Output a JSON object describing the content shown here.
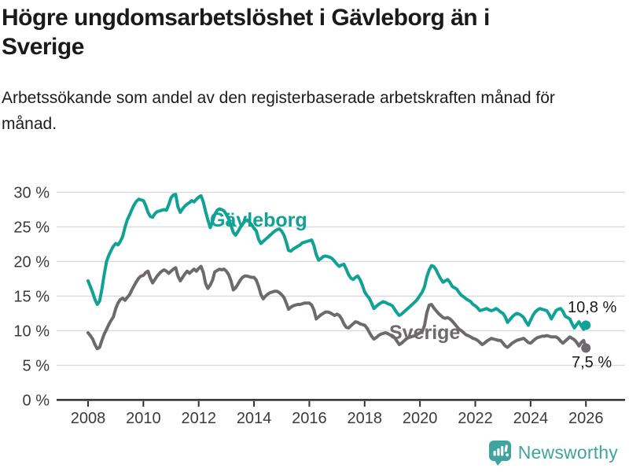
{
  "header": {
    "title": "Högre ungdomsarbetslöshet i Gävleborg än i Sverige",
    "subtitle": "Arbetssökande som andel av den registerbaserade arbetskraften månad för månad."
  },
  "chart_data": {
    "type": "line",
    "title": "Högre ungdomsarbetslöshet i Gävleborg än i Sverige",
    "unit": "%",
    "x_start": "2008-01",
    "x_end": "2026-01",
    "x_interval": "monthly",
    "ylim": [
      0,
      30
    ],
    "grid": "horizontal",
    "legend_position": "inline-labels",
    "x_axis": {
      "ticks": [
        {
          "value": 2008,
          "label": "2008"
        },
        {
          "value": 2010,
          "label": "2010"
        },
        {
          "value": 2012,
          "label": "2012"
        },
        {
          "value": 2014,
          "label": "2014"
        },
        {
          "value": 2016,
          "label": "2016"
        },
        {
          "value": 2018,
          "label": "2018"
        },
        {
          "value": 2020,
          "label": "2020"
        },
        {
          "value": 2022,
          "label": "2022"
        },
        {
          "value": 2024,
          "label": "2024"
        },
        {
          "value": 2026,
          "label": "2026"
        }
      ]
    },
    "y_axis": {
      "ticks": [
        {
          "value": 0,
          "label": "0 %"
        },
        {
          "value": 5,
          "label": "5 %"
        },
        {
          "value": 10,
          "label": "10 %"
        },
        {
          "value": 15,
          "label": "15 %"
        },
        {
          "value": 20,
          "label": "20 %"
        },
        {
          "value": 25,
          "label": "25 %"
        },
        {
          "value": 30,
          "label": "30 %"
        }
      ]
    },
    "series": [
      {
        "name": "Gävleborg",
        "label": "Gävleborg",
        "color": "#10A294",
        "end_label": "10,8 %",
        "values": [
          17.2,
          16.4,
          15.5,
          14.5,
          13.8,
          14.3,
          16.0,
          18.1,
          20.0,
          20.9,
          21.6,
          22.2,
          22.6,
          22.4,
          22.9,
          23.6,
          24.9,
          26.0,
          26.7,
          27.5,
          28.2,
          28.7,
          29.0,
          28.9,
          28.8,
          28.1,
          27.1,
          26.5,
          26.4,
          26.9,
          27.2,
          27.3,
          27.4,
          27.5,
          27.4,
          28.2,
          29.2,
          29.6,
          29.7,
          27.9,
          27.1,
          27.6,
          28.0,
          28.3,
          28.5,
          28.8,
          28.6,
          29.0,
          29.3,
          29.5,
          28.6,
          27.2,
          26.0,
          24.9,
          25.8,
          26.8,
          27.4,
          27.6,
          27.5,
          27.3,
          26.8,
          26.2,
          25.2,
          24.2,
          23.8,
          24.3,
          24.9,
          25.4,
          25.8,
          26.0,
          25.7,
          25.3,
          24.8,
          24.4,
          23.2,
          22.6,
          22.9,
          23.2,
          23.5,
          23.8,
          24.1,
          24.4,
          24.6,
          24.7,
          24.4,
          23.8,
          22.8,
          21.6,
          21.5,
          21.8,
          22.0,
          22.2,
          22.4,
          22.7,
          22.8,
          22.9,
          23.0,
          23.1,
          22.3,
          21.0,
          20.2,
          20.4,
          20.7,
          20.8,
          20.7,
          20.6,
          20.4,
          20.0,
          19.6,
          19.3,
          19.5,
          19.6,
          18.9,
          18.1,
          17.6,
          17.4,
          17.7,
          17.9,
          17.4,
          16.6,
          15.6,
          15.1,
          14.7,
          14.0,
          13.2,
          13.5,
          13.8,
          14.0,
          14.2,
          14.1,
          13.9,
          13.8,
          13.6,
          13.1,
          12.6,
          12.2,
          12.4,
          12.7,
          13.0,
          13.3,
          13.6,
          13.9,
          14.2,
          14.6,
          15.1,
          15.6,
          16.4,
          17.8,
          18.8,
          19.4,
          19.3,
          18.8,
          18.1,
          17.5,
          17.0,
          17.2,
          17.4,
          17.0,
          16.4,
          16.2,
          16.0,
          15.5,
          15.1,
          14.9,
          14.6,
          14.4,
          14.2,
          13.8,
          13.6,
          13.3,
          12.9,
          13.0,
          13.1,
          13.2,
          13.0,
          12.9,
          13.0,
          13.2,
          13.0,
          12.7,
          12.5,
          12.0,
          11.2,
          11.6,
          12.0,
          12.3,
          12.5,
          12.4,
          12.2,
          11.9,
          11.3,
          10.8,
          11.5,
          12.2,
          12.7,
          13.0,
          13.2,
          13.1,
          13.0,
          12.9,
          12.4,
          11.7,
          12.3,
          12.9,
          13.1,
          13.2,
          12.8,
          12.1,
          11.9,
          11.7,
          11.0,
          10.4,
          10.9,
          11.3,
          10.7,
          10.2,
          10.8
        ]
      },
      {
        "name": "Sverige",
        "label": "Sverige",
        "color": "#6E696C",
        "end_label": "7,5 %",
        "values": [
          9.7,
          9.3,
          8.8,
          8.0,
          7.4,
          7.6,
          8.6,
          9.5,
          10.2,
          10.9,
          11.5,
          12.0,
          13.2,
          14.0,
          14.5,
          14.7,
          14.4,
          14.8,
          15.2,
          15.9,
          16.5,
          17.1,
          17.6,
          17.9,
          18.0,
          18.4,
          18.6,
          17.6,
          16.9,
          17.4,
          17.9,
          18.3,
          18.6,
          18.8,
          18.6,
          18.3,
          18.6,
          18.9,
          19.1,
          17.9,
          17.2,
          17.7,
          18.2,
          18.6,
          18.3,
          18.6,
          18.9,
          18.6,
          19.0,
          19.3,
          18.4,
          16.8,
          16.1,
          16.6,
          17.3,
          18.5,
          18.7,
          18.9,
          18.8,
          18.9,
          18.6,
          18.1,
          17.2,
          15.9,
          16.2,
          16.7,
          17.3,
          17.7,
          17.9,
          17.9,
          17.8,
          17.7,
          17.7,
          17.3,
          16.4,
          15.2,
          14.6,
          15.0,
          15.3,
          15.5,
          15.6,
          15.7,
          15.7,
          15.5,
          15.2,
          14.8,
          14.0,
          13.1,
          13.4,
          13.6,
          13.7,
          13.8,
          13.8,
          13.9,
          14.0,
          14.0,
          14.0,
          13.7,
          13.0,
          11.7,
          12.0,
          12.3,
          12.5,
          12.7,
          12.7,
          12.6,
          12.4,
          12.2,
          12.4,
          12.2,
          11.7,
          11.0,
          10.5,
          10.4,
          10.7,
          11.0,
          11.3,
          11.2,
          11.0,
          10.9,
          10.8,
          10.4,
          9.8,
          9.2,
          8.8,
          9.0,
          9.3,
          9.5,
          9.6,
          9.7,
          9.6,
          9.4,
          9.3,
          9.0,
          8.5,
          8.0,
          8.2,
          8.5,
          8.8,
          9.0,
          9.1,
          9.2,
          9.3,
          9.5,
          9.7,
          9.9,
          10.8,
          12.6,
          13.7,
          13.8,
          13.3,
          12.9,
          12.5,
          12.2,
          11.9,
          11.8,
          11.9,
          11.7,
          11.4,
          11.0,
          10.6,
          10.2,
          10.0,
          9.7,
          9.4,
          9.3,
          9.1,
          8.9,
          8.8,
          8.6,
          8.3,
          8.0,
          8.2,
          8.5,
          8.7,
          8.9,
          8.8,
          8.7,
          8.6,
          8.6,
          8.2,
          7.8,
          7.6,
          7.9,
          8.2,
          8.4,
          8.6,
          8.7,
          8.8,
          8.9,
          8.6,
          8.3,
          8.2,
          8.5,
          8.8,
          9.0,
          9.1,
          9.2,
          9.2,
          9.3,
          9.2,
          9.1,
          9.1,
          9.1,
          8.9,
          8.5,
          8.2,
          8.5,
          8.8,
          9.1,
          8.9,
          8.7,
          8.3,
          7.8,
          8.3,
          8.6,
          7.5
        ]
      }
    ],
    "colors": {
      "axis_line": "#2e2e2e",
      "gridline": "#d9d9d9",
      "axis_text": "#3b3b3b"
    }
  },
  "footer": {
    "brand": "Newsworthy",
    "logo_icon": "bar-chart-speech-bubble-icon",
    "brand_color": "#3FA49E"
  }
}
